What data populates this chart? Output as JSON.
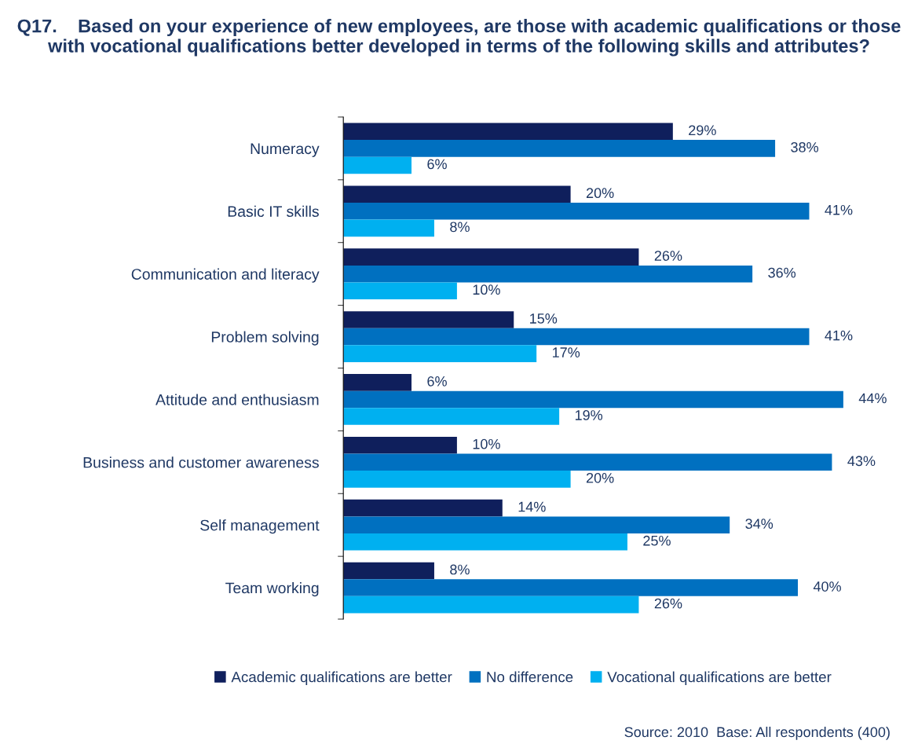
{
  "chart_data": {
    "type": "bar",
    "orientation": "horizontal",
    "title": "Q17.    Based on your experience of new employees, are those with academic qualifications or those with vocational qualifications better developed in terms of the following skills and attributes?",
    "categories": [
      "Numeracy",
      "Basic IT skills",
      "Communication and literacy",
      "Problem solving",
      "Attitude and enthusiasm",
      "Business and customer awareness",
      "Self management",
      "Team working"
    ],
    "series": [
      {
        "name": "Academic qualifications are better",
        "color": "#0f1f5c",
        "values": [
          29,
          20,
          26,
          15,
          6,
          10,
          14,
          8
        ],
        "value_labels": [
          "29%",
          "20%",
          "26%",
          "15%",
          "6%",
          "10%",
          "14%",
          "8%"
        ]
      },
      {
        "name": "No difference",
        "color": "#0070c0",
        "values": [
          38,
          41,
          36,
          41,
          44,
          43,
          34,
          40
        ],
        "value_labels": [
          "38%",
          "41%",
          "36%",
          "41%",
          "44%",
          "43%",
          "34%",
          "40%"
        ]
      },
      {
        "name": "Vocational qualifications are better",
        "color": "#00b0f0",
        "values": [
          6,
          8,
          10,
          17,
          19,
          20,
          25,
          26
        ],
        "value_labels": [
          "6%",
          "8%",
          "10%",
          "17%",
          "19%",
          "20%",
          "25%",
          "26%"
        ]
      }
    ],
    "legend": "bottom",
    "grid": false,
    "annotations": [
      "Source: 2010  Base: All respondents (400)"
    ]
  }
}
